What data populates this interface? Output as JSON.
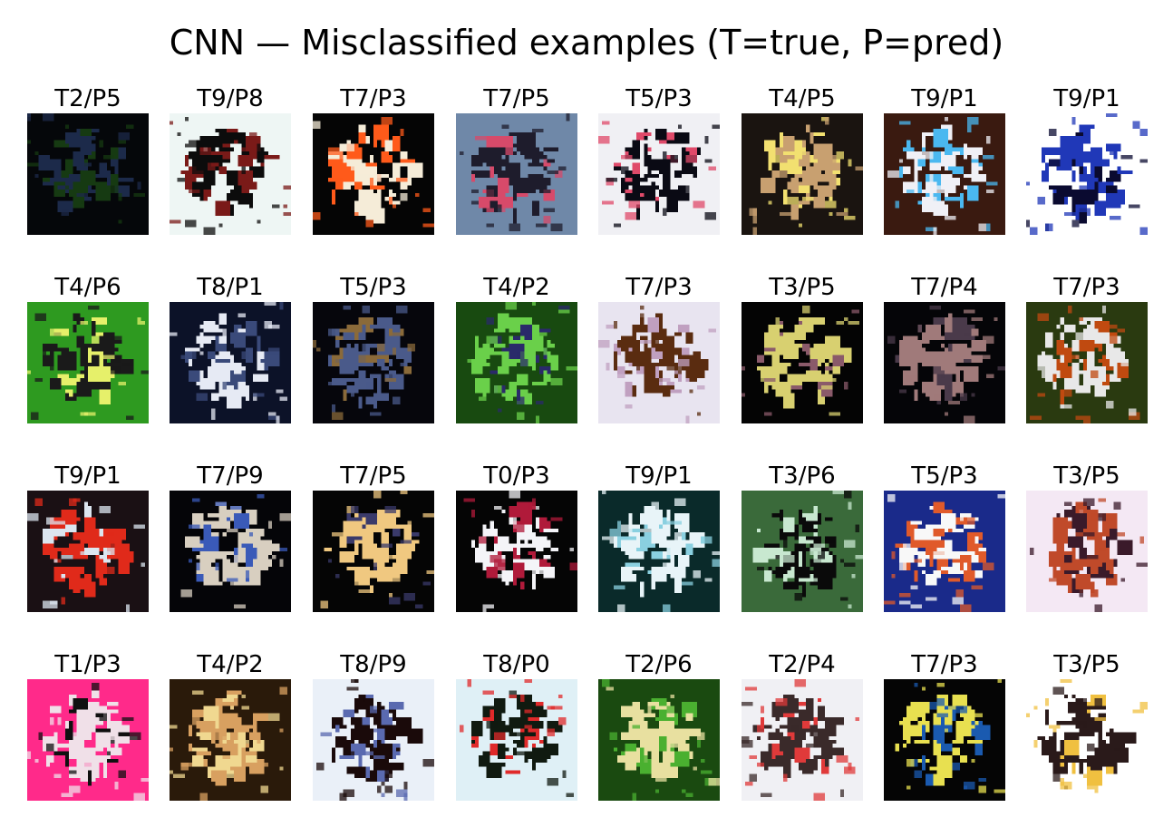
{
  "chart_data": {
    "type": "image_grid",
    "title": "CNN — Misclassified examples (T=true, P=pred)",
    "rows": 4,
    "cols": 8,
    "palette": [
      "#000000",
      "#ffffff",
      "#e23a2a",
      "#2c6be0",
      "#2f9e3a",
      "#f2d23a",
      "#8a5a3a",
      "#bfc7d0",
      "#ff4fa0",
      "#1a1a40"
    ],
    "examples": [
      {
        "label": "T2/P5",
        "true": 2,
        "pred": 5,
        "bg": "#05070a",
        "fg": "#1c2a4a",
        "accent": "#163a12"
      },
      {
        "label": "T9/P8",
        "true": 9,
        "pred": 8,
        "bg": "#eef6f4",
        "fg": "#0c0c0c",
        "accent": "#7a1a18"
      },
      {
        "label": "T7/P3",
        "true": 7,
        "pred": 3,
        "bg": "#050505",
        "fg": "#f5ecd8",
        "accent": "#ff5a1a"
      },
      {
        "label": "T7/P5",
        "true": 7,
        "pred": 5,
        "bg": "#6f88a8",
        "fg": "#1e1c2c",
        "accent": "#d74a6a"
      },
      {
        "label": "T5/P3",
        "true": 5,
        "pred": 3,
        "bg": "#f0f0f4",
        "fg": "#0a0a14",
        "accent": "#e04a6a"
      },
      {
        "label": "T4/P5",
        "true": 4,
        "pred": 5,
        "bg": "#1a1410",
        "fg": "#c8a070",
        "accent": "#f2e070"
      },
      {
        "label": "T9/P1",
        "true": 9,
        "pred": 1,
        "bg": "#3a1a10",
        "fg": "#f0f0f6",
        "accent": "#4ab8f0"
      },
      {
        "label": "T9/P1",
        "true": 9,
        "pred": 1,
        "bg": "#ffffff",
        "fg": "#2038b8",
        "accent": "#0a0a30"
      },
      {
        "label": "T4/P6",
        "true": 4,
        "pred": 6,
        "bg": "#2e9a20",
        "fg": "#1a1a1a",
        "accent": "#e6f06a"
      },
      {
        "label": "T8/P1",
        "true": 8,
        "pred": 1,
        "bg": "#0c1228",
        "fg": "#e6eaf4",
        "accent": "#3a4a7a"
      },
      {
        "label": "T5/P3",
        "true": 5,
        "pred": 3,
        "bg": "#06060c",
        "fg": "#4a5a8a",
        "accent": "#8a6a3a"
      },
      {
        "label": "T4/P2",
        "true": 4,
        "pred": 2,
        "bg": "#184a10",
        "fg": "#6ad04a",
        "accent": "#2a2a6a"
      },
      {
        "label": "T7/P3",
        "true": 7,
        "pred": 3,
        "bg": "#e8e4f0",
        "fg": "#5a2c10",
        "accent": "#c0a0c0"
      },
      {
        "label": "T3/P5",
        "true": 3,
        "pred": 5,
        "bg": "#040404",
        "fg": "#d8d070",
        "accent": "#8a5a6a"
      },
      {
        "label": "T7/P4",
        "true": 7,
        "pred": 4,
        "bg": "#050508",
        "fg": "#a07a7a",
        "accent": "#4a3a4a"
      },
      {
        "label": "T7/P3",
        "true": 7,
        "pred": 3,
        "bg": "#2a3a10",
        "fg": "#e8e8e8",
        "accent": "#c04a10"
      },
      {
        "label": "T9/P1",
        "true": 9,
        "pred": 1,
        "bg": "#1a1014",
        "fg": "#e02a1a",
        "accent": "#dce6f0"
      },
      {
        "label": "T7/P9",
        "true": 7,
        "pred": 9,
        "bg": "#050508",
        "fg": "#d8cfc0",
        "accent": "#3a5ab8"
      },
      {
        "label": "T7/P5",
        "true": 7,
        "pred": 5,
        "bg": "#050505",
        "fg": "#f0c880",
        "accent": "#3a3a6a"
      },
      {
        "label": "T0/P3",
        "true": 0,
        "pred": 3,
        "bg": "#050505",
        "fg": "#f4f4f8",
        "accent": "#b01a3a"
      },
      {
        "label": "T9/P1",
        "true": 9,
        "pred": 1,
        "bg": "#0a2a2a",
        "fg": "#e8f4f8",
        "accent": "#8ad0e0"
      },
      {
        "label": "T3/P6",
        "true": 3,
        "pred": 6,
        "bg": "#3a6a3a",
        "fg": "#0a0a0a",
        "accent": "#c8e8d0"
      },
      {
        "label": "T5/P3",
        "true": 5,
        "pred": 3,
        "bg": "#1a2a8a",
        "fg": "#f8f8f8",
        "accent": "#e05a2a"
      },
      {
        "label": "T3/P5",
        "true": 3,
        "pred": 5,
        "bg": "#f4e8f4",
        "fg": "#c04a2a",
        "accent": "#3a1a2a"
      },
      {
        "label": "T1/P3",
        "true": 1,
        "pred": 3,
        "bg": "#ff2a8a",
        "fg": "#f0e0e8",
        "accent": "#101010"
      },
      {
        "label": "T4/P2",
        "true": 4,
        "pred": 2,
        "bg": "#2a1a0a",
        "fg": "#d8a060",
        "accent": "#f0d890"
      },
      {
        "label": "T8/P9",
        "true": 8,
        "pred": 9,
        "bg": "#eaf0f8",
        "fg": "#1a0a0a",
        "accent": "#5a6ab0"
      },
      {
        "label": "T8/P0",
        "true": 8,
        "pred": 0,
        "bg": "#dff0f6",
        "fg": "#101a10",
        "accent": "#e02a2a"
      },
      {
        "label": "T2/P6",
        "true": 2,
        "pred": 6,
        "bg": "#1a4a10",
        "fg": "#e8e0a0",
        "accent": "#4ab030"
      },
      {
        "label": "T2/P4",
        "true": 2,
        "pred": 4,
        "bg": "#f0f0f4",
        "fg": "#3a2a2a",
        "accent": "#e03a3a"
      },
      {
        "label": "T7/P3",
        "true": 7,
        "pred": 3,
        "bg": "#050505",
        "fg": "#e8e050",
        "accent": "#1a5ab0"
      },
      {
        "label": "T3/P5",
        "true": 3,
        "pred": 5,
        "bg": "#ffffff",
        "fg": "#2a1a1a",
        "accent": "#f0c040"
      }
    ]
  }
}
